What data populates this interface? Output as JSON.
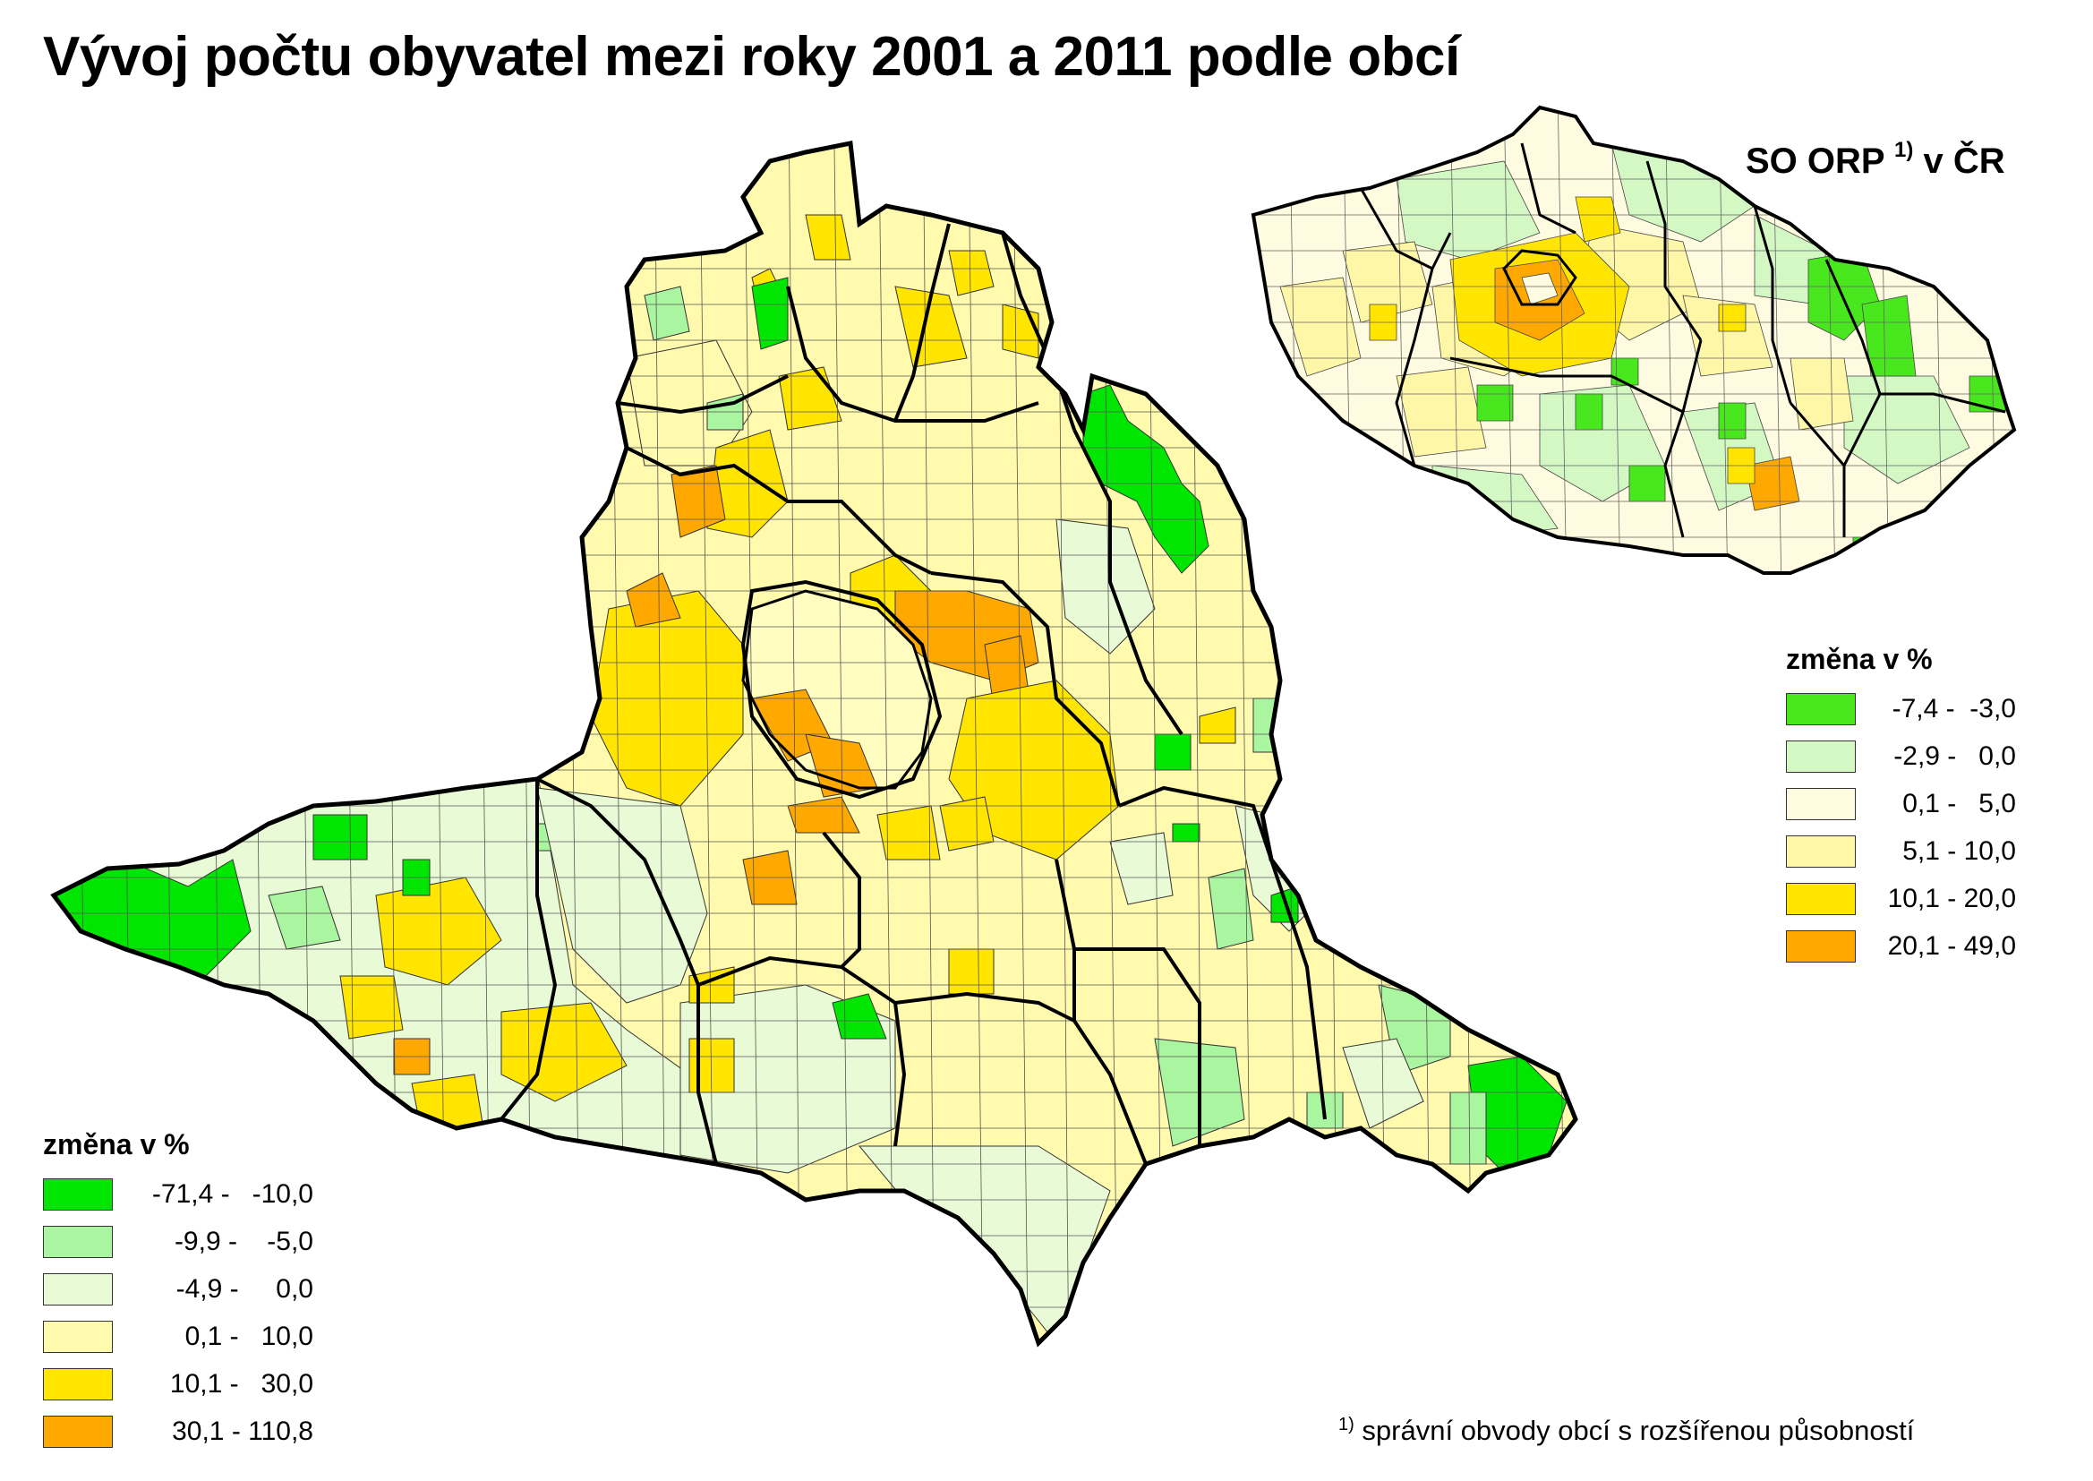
{
  "title": "Vývoj počtu obyvatel mezi roky 2001 a 2011 podle obcí",
  "inset": {
    "title": "SO ORP",
    "title_sup": "1)",
    "title_suffix": "v ČR"
  },
  "legend_main": {
    "title": "změna v %",
    "items": [
      {
        "label": "-71,4 -   -10,0",
        "color": "#00e600"
      },
      {
        "label": "-9,9 -    -5,0",
        "color": "#a9f5a0"
      },
      {
        "label": "-4,9 -     0,0",
        "color": "#e9fbd6"
      },
      {
        "label": "0,1 -   10,0",
        "color": "#fffaad"
      },
      {
        "label": "10,1 -   30,0",
        "color": "#ffe500"
      },
      {
        "label": "30,1 - 110,8",
        "color": "#ffa800"
      }
    ]
  },
  "legend_orp": {
    "title": "změna v %",
    "items": [
      {
        "label": "-7,4 -  -3,0",
        "color": "#49e81e"
      },
      {
        "label": "-2,9 -   0,0",
        "color": "#d4f8c4"
      },
      {
        "label": "0,1 -   5,0",
        "color": "#fffbe0"
      },
      {
        "label": "5,1 - 10,0",
        "color": "#fff7a8"
      },
      {
        "label": "10,1 - 20,0",
        "color": "#ffe500"
      },
      {
        "label": "20,1 - 49,0",
        "color": "#ffa800"
      }
    ]
  },
  "footnote": {
    "sup": "1)",
    "text": "správní obvody obcí s rozšířenou působností"
  },
  "icons": [
    "south-moravian-region-map",
    "czech-republic-orp-map"
  ]
}
